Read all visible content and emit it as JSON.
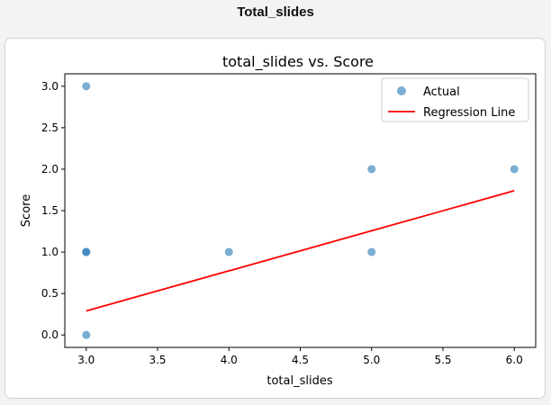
{
  "header": {
    "title": "Total_slides"
  },
  "chart_data": {
    "type": "scatter",
    "title": "total_slides vs. Score",
    "xlabel": "total_slides",
    "ylabel": "Score",
    "xlim": [
      2.85,
      6.15
    ],
    "ylim": [
      -0.15,
      3.15
    ],
    "xticks": [
      3.0,
      3.5,
      4.0,
      4.5,
      5.0,
      5.5,
      6.0
    ],
    "yticks": [
      0.0,
      0.5,
      1.0,
      1.5,
      2.0,
      2.5,
      3.0
    ],
    "xtick_labels": [
      "3.0",
      "3.5",
      "4.0",
      "4.5",
      "5.0",
      "5.5",
      "6.0"
    ],
    "ytick_labels": [
      "0.0",
      "0.5",
      "1.0",
      "1.5",
      "2.0",
      "2.5",
      "3.0"
    ],
    "grid": false,
    "legend_position": "top-right",
    "series": [
      {
        "name": "Actual",
        "kind": "scatter",
        "color": "#1f77b4",
        "points": [
          {
            "x": 3,
            "y": 3
          },
          {
            "x": 3,
            "y": 1
          },
          {
            "x": 3,
            "y": 1
          },
          {
            "x": 3,
            "y": 0
          },
          {
            "x": 4,
            "y": 1
          },
          {
            "x": 5,
            "y": 2
          },
          {
            "x": 5,
            "y": 1
          },
          {
            "x": 6,
            "y": 2
          }
        ]
      },
      {
        "name": "Regression Line",
        "kind": "line",
        "color": "#ff0000",
        "points": [
          {
            "x": 3,
            "y": 0.29
          },
          {
            "x": 6,
            "y": 1.74
          }
        ]
      }
    ]
  }
}
